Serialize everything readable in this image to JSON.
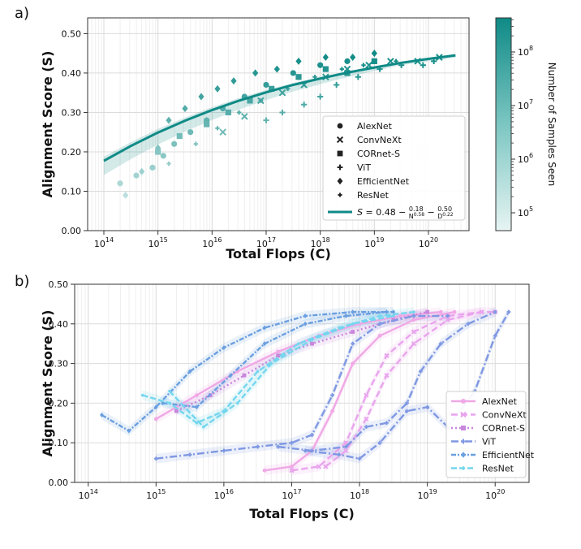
{
  "colors": {
    "teal": "#0f8a86",
    "teal_light": "#dff1f0",
    "alexnet": "#f0a8e6",
    "convnext": "#e9a4ee",
    "cornet": "#c886dc",
    "vit": "#7f98e2",
    "efficientnet": "#6a9fe0",
    "resnet": "#74d6ee"
  },
  "chart_data": [
    {
      "panel_label": "a)",
      "type": "scatter",
      "xlabel": "Total Flops (C)",
      "ylabel": "Alignment Score (S)",
      "xscale": "log",
      "xlim_exp": [
        13.7,
        20.75
      ],
      "ylim": [
        0,
        0.54
      ],
      "x_tick_labels": [
        {
          "base": "10",
          "exp": "14",
          "v": 14
        },
        {
          "base": "10",
          "exp": "15",
          "v": 15
        },
        {
          "base": "10",
          "exp": "16",
          "v": 16
        },
        {
          "base": "10",
          "exp": "17",
          "v": 17
        },
        {
          "base": "10",
          "exp": "18",
          "v": 18
        },
        {
          "base": "10",
          "exp": "19",
          "v": 19
        },
        {
          "base": "10",
          "exp": "20",
          "v": 20
        }
      ],
      "y_ticks": [
        "0.00",
        "0.10",
        "0.20",
        "0.30",
        "0.40",
        "0.50"
      ],
      "grid": true,
      "colorbar": {
        "label": "Number of Samples Seen",
        "tick_labels": [
          {
            "base": "10",
            "exp": "5"
          },
          {
            "base": "10",
            "exp": "6"
          },
          {
            "base": "10",
            "exp": "7"
          },
          {
            "base": "10",
            "exp": "8"
          }
        ]
      },
      "legend": {
        "position": "lower-right",
        "items": [
          {
            "label": "AlexNet",
            "marker": "circle"
          },
          {
            "label": "ConvNeXt",
            "marker": "x"
          },
          {
            "label": "CORnet-S",
            "marker": "square"
          },
          {
            "label": "ViT",
            "marker": "plus"
          },
          {
            "label": "EfficientNet",
            "marker": "diamond"
          },
          {
            "label": "ResNet",
            "marker": "small-plus"
          }
        ]
      },
      "fit": {
        "label_eq": "S = 0.48 − 0.18/N^0.58 − 0.50/D^0.22",
        "s_inf": 0.48,
        "x_log_range": [
          14,
          20.5
        ],
        "points": [
          [
            14,
            0.177
          ],
          [
            14.5,
            0.215
          ],
          [
            15,
            0.249
          ],
          [
            15.5,
            0.279
          ],
          [
            16,
            0.306
          ],
          [
            16.5,
            0.33
          ],
          [
            17,
            0.351
          ],
          [
            17.5,
            0.37
          ],
          [
            18,
            0.386
          ],
          [
            18.5,
            0.401
          ],
          [
            19,
            0.414
          ],
          [
            19.5,
            0.426
          ],
          [
            20,
            0.436
          ],
          [
            20.5,
            0.445
          ]
        ]
      },
      "points": [
        {
          "m": "circle",
          "x": 14.3,
          "y": 0.12
        },
        {
          "m": "circle",
          "x": 14.6,
          "y": 0.14
        },
        {
          "m": "circle",
          "x": 14.9,
          "y": 0.16
        },
        {
          "m": "circle",
          "x": 15.1,
          "y": 0.19
        },
        {
          "m": "circle",
          "x": 15.3,
          "y": 0.22
        },
        {
          "m": "circle",
          "x": 15.6,
          "y": 0.25
        },
        {
          "m": "circle",
          "x": 15.9,
          "y": 0.28
        },
        {
          "m": "circle",
          "x": 16.2,
          "y": 0.31
        },
        {
          "m": "circle",
          "x": 16.6,
          "y": 0.34
        },
        {
          "m": "circle",
          "x": 17.0,
          "y": 0.37
        },
        {
          "m": "circle",
          "x": 17.5,
          "y": 0.4
        },
        {
          "m": "circle",
          "x": 18.0,
          "y": 0.42
        },
        {
          "m": "circle",
          "x": 18.5,
          "y": 0.43
        },
        {
          "m": "diamond",
          "x": 14.4,
          "y": 0.09
        },
        {
          "m": "diamond",
          "x": 14.7,
          "y": 0.15
        },
        {
          "m": "diamond",
          "x": 15.0,
          "y": 0.21
        },
        {
          "m": "diamond",
          "x": 15.2,
          "y": 0.28
        },
        {
          "m": "diamond",
          "x": 15.5,
          "y": 0.31
        },
        {
          "m": "diamond",
          "x": 15.8,
          "y": 0.34
        },
        {
          "m": "diamond",
          "x": 16.1,
          "y": 0.36
        },
        {
          "m": "diamond",
          "x": 16.4,
          "y": 0.38
        },
        {
          "m": "diamond",
          "x": 16.8,
          "y": 0.4
        },
        {
          "m": "diamond",
          "x": 17.2,
          "y": 0.41
        },
        {
          "m": "diamond",
          "x": 17.6,
          "y": 0.43
        },
        {
          "m": "diamond",
          "x": 18.1,
          "y": 0.44
        },
        {
          "m": "diamond",
          "x": 18.6,
          "y": 0.44
        },
        {
          "m": "diamond",
          "x": 19.0,
          "y": 0.45
        },
        {
          "m": "square",
          "x": 15.0,
          "y": 0.2
        },
        {
          "m": "square",
          "x": 15.4,
          "y": 0.24
        },
        {
          "m": "square",
          "x": 15.9,
          "y": 0.27
        },
        {
          "m": "square",
          "x": 16.3,
          "y": 0.3
        },
        {
          "m": "square",
          "x": 16.7,
          "y": 0.33
        },
        {
          "m": "square",
          "x": 17.1,
          "y": 0.36
        },
        {
          "m": "square",
          "x": 17.6,
          "y": 0.39
        },
        {
          "m": "square",
          "x": 18.1,
          "y": 0.41
        },
        {
          "m": "square",
          "x": 18.5,
          "y": 0.4
        },
        {
          "m": "square",
          "x": 19.0,
          "y": 0.43
        },
        {
          "m": "x",
          "x": 16.2,
          "y": 0.25
        },
        {
          "m": "x",
          "x": 16.6,
          "y": 0.29
        },
        {
          "m": "x",
          "x": 16.9,
          "y": 0.33
        },
        {
          "m": "x",
          "x": 17.3,
          "y": 0.35
        },
        {
          "m": "x",
          "x": 17.7,
          "y": 0.37
        },
        {
          "m": "x",
          "x": 18.1,
          "y": 0.39
        },
        {
          "m": "x",
          "x": 18.5,
          "y": 0.41
        },
        {
          "m": "x",
          "x": 18.9,
          "y": 0.42
        },
        {
          "m": "x",
          "x": 19.3,
          "y": 0.43
        },
        {
          "m": "x",
          "x": 19.8,
          "y": 0.43
        },
        {
          "m": "x",
          "x": 20.2,
          "y": 0.44
        },
        {
          "m": "plus",
          "x": 17.0,
          "y": 0.28
        },
        {
          "m": "plus",
          "x": 17.3,
          "y": 0.3
        },
        {
          "m": "plus",
          "x": 17.7,
          "y": 0.32
        },
        {
          "m": "plus",
          "x": 18.0,
          "y": 0.34
        },
        {
          "m": "plus",
          "x": 18.3,
          "y": 0.37
        },
        {
          "m": "plus",
          "x": 18.7,
          "y": 0.39
        },
        {
          "m": "plus",
          "x": 19.1,
          "y": 0.41
        },
        {
          "m": "plus",
          "x": 19.5,
          "y": 0.42
        },
        {
          "m": "plus",
          "x": 19.9,
          "y": 0.42
        },
        {
          "m": "plus",
          "x": 20.1,
          "y": 0.43
        },
        {
          "m": "small-plus",
          "x": 15.2,
          "y": 0.17
        },
        {
          "m": "small-plus",
          "x": 15.7,
          "y": 0.22
        },
        {
          "m": "small-plus",
          "x": 16.1,
          "y": 0.26
        },
        {
          "m": "small-plus",
          "x": 16.5,
          "y": 0.3
        },
        {
          "m": "small-plus",
          "x": 16.9,
          "y": 0.33
        },
        {
          "m": "small-plus",
          "x": 17.4,
          "y": 0.36
        },
        {
          "m": "small-plus",
          "x": 17.9,
          "y": 0.39
        },
        {
          "m": "small-plus",
          "x": 18.4,
          "y": 0.41
        },
        {
          "m": "small-plus",
          "x": 18.8,
          "y": 0.42
        },
        {
          "m": "small-plus",
          "x": 19.4,
          "y": 0.43
        }
      ]
    },
    {
      "panel_label": "b)",
      "type": "line",
      "xlabel": "Total Flops (C)",
      "ylabel": "Alignment Score (S)",
      "xscale": "log",
      "xlim_exp": [
        13.8,
        20.5
      ],
      "ylim": [
        0,
        0.5
      ],
      "x_tick_labels": [
        {
          "base": "10",
          "exp": "14",
          "v": 14
        },
        {
          "base": "10",
          "exp": "15",
          "v": 15
        },
        {
          "base": "10",
          "exp": "16",
          "v": 16
        },
        {
          "base": "10",
          "exp": "17",
          "v": 17
        },
        {
          "base": "10",
          "exp": "18",
          "v": 18
        },
        {
          "base": "10",
          "exp": "19",
          "v": 19
        },
        {
          "base": "10",
          "exp": "20",
          "v": 20
        }
      ],
      "y_ticks": [
        "0.00",
        "0.10",
        "0.20",
        "0.30",
        "0.40",
        "0.50"
      ],
      "grid": true,
      "legend": {
        "position": "lower-right"
      },
      "series": [
        {
          "name": "AlexNet",
          "color": "#f0a8e6",
          "dash": "",
          "points": [
            [
              15.0,
              0.16
            ],
            [
              15.6,
              0.22
            ],
            [
              16.2,
              0.28
            ],
            [
              16.8,
              0.33
            ],
            [
              17.4,
              0.37
            ],
            [
              18.0,
              0.4
            ],
            [
              18.6,
              0.42
            ],
            [
              19.2,
              0.43
            ]
          ]
        },
        {
          "name": "AlexNet",
          "color": "#f0a8e6",
          "dash": "",
          "points": [
            [
              16.6,
              0.03
            ],
            [
              17.0,
              0.04
            ],
            [
              17.3,
              0.08
            ],
            [
              17.6,
              0.18
            ],
            [
              17.9,
              0.3
            ],
            [
              18.3,
              0.37
            ],
            [
              18.8,
              0.41
            ],
            [
              19.4,
              0.43
            ]
          ]
        },
        {
          "name": "ConvNeXt",
          "color": "#e9a4ee",
          "dash": "8,4",
          "points": [
            [
              17.0,
              0.03
            ],
            [
              17.4,
              0.04
            ],
            [
              17.8,
              0.1
            ],
            [
              18.1,
              0.22
            ],
            [
              18.4,
              0.32
            ],
            [
              18.8,
              0.38
            ],
            [
              19.3,
              0.42
            ],
            [
              19.8,
              0.43
            ],
            [
              20.0,
              0.43
            ]
          ]
        },
        {
          "name": "ConvNeXt",
          "color": "#e9a4ee",
          "dash": "8,4",
          "points": [
            [
              17.5,
              0.04
            ],
            [
              17.8,
              0.08
            ],
            [
              18.1,
              0.16
            ],
            [
              18.4,
              0.27
            ],
            [
              18.8,
              0.35
            ],
            [
              19.3,
              0.41
            ],
            [
              19.8,
              0.43
            ]
          ]
        },
        {
          "name": "CORnet-S",
          "color": "#c886dc",
          "dash": "2,3",
          "points": [
            [
              15.3,
              0.18
            ],
            [
              15.8,
              0.22
            ],
            [
              16.3,
              0.27
            ],
            [
              16.8,
              0.32
            ],
            [
              17.3,
              0.35
            ],
            [
              17.9,
              0.38
            ],
            [
              18.5,
              0.41
            ],
            [
              19.0,
              0.43
            ]
          ]
        },
        {
          "name": "ViT",
          "color": "#7f98e2",
          "dash": "9,3,2,3",
          "points": [
            [
              15.0,
              0.06
            ],
            [
              15.5,
              0.07
            ],
            [
              16.0,
              0.08
            ],
            [
              16.5,
              0.09
            ],
            [
              17.0,
              0.1
            ],
            [
              17.3,
              0.12
            ],
            [
              17.6,
              0.22
            ],
            [
              17.9,
              0.35
            ],
            [
              18.3,
              0.4
            ],
            [
              18.8,
              0.42
            ],
            [
              19.3,
              0.42
            ]
          ]
        },
        {
          "name": "ViT",
          "color": "#7f98e2",
          "dash": "9,3,2,3",
          "points": [
            [
              16.8,
              0.09
            ],
            [
              17.3,
              0.08
            ],
            [
              17.8,
              0.09
            ],
            [
              18.1,
              0.14
            ],
            [
              18.4,
              0.15
            ],
            [
              18.7,
              0.2
            ],
            [
              18.9,
              0.28
            ],
            [
              19.2,
              0.35
            ],
            [
              19.6,
              0.4
            ],
            [
              20.0,
              0.43
            ]
          ]
        },
        {
          "name": "ViT",
          "color": "#7f98e2",
          "dash": "9,3,2,3",
          "points": [
            [
              17.2,
              0.08
            ],
            [
              17.7,
              0.07
            ],
            [
              18.0,
              0.06
            ],
            [
              18.3,
              0.1
            ],
            [
              18.7,
              0.18
            ],
            [
              19.0,
              0.19
            ],
            [
              19.3,
              0.14
            ],
            [
              19.7,
              0.23
            ],
            [
              20.0,
              0.37
            ],
            [
              20.2,
              0.43
            ]
          ]
        },
        {
          "name": "EfficientNet",
          "color": "#6a9fe0",
          "dash": "6,2,2,2",
          "points": [
            [
              14.2,
              0.17
            ],
            [
              14.6,
              0.13
            ],
            [
              15.0,
              0.19
            ],
            [
              15.5,
              0.28
            ],
            [
              16.0,
              0.34
            ],
            [
              16.6,
              0.39
            ],
            [
              17.2,
              0.42
            ],
            [
              17.9,
              0.43
            ],
            [
              18.5,
              0.43
            ]
          ]
        },
        {
          "name": "EfficientNet",
          "color": "#6a9fe0",
          "dash": "6,2,2,2",
          "points": [
            [
              15.1,
              0.2
            ],
            [
              15.6,
              0.19
            ],
            [
              16.1,
              0.27
            ],
            [
              16.6,
              0.35
            ],
            [
              17.2,
              0.4
            ],
            [
              17.8,
              0.42
            ],
            [
              18.4,
              0.43
            ]
          ]
        },
        {
          "name": "ResNet",
          "color": "#74d6ee",
          "dash": "7,3",
          "points": [
            [
              14.8,
              0.22
            ],
            [
              15.2,
              0.2
            ],
            [
              15.6,
              0.15
            ],
            [
              16.0,
              0.18
            ],
            [
              16.5,
              0.28
            ],
            [
              17.1,
              0.35
            ],
            [
              17.7,
              0.39
            ],
            [
              18.3,
              0.42
            ],
            [
              18.8,
              0.43
            ]
          ]
        },
        {
          "name": "ResNet",
          "color": "#74d6ee",
          "dash": "7,3",
          "points": [
            [
              15.2,
              0.23
            ],
            [
              15.7,
              0.14
            ],
            [
              16.2,
              0.2
            ],
            [
              16.7,
              0.3
            ],
            [
              17.3,
              0.36
            ],
            [
              17.9,
              0.4
            ],
            [
              18.5,
              0.42
            ]
          ]
        }
      ],
      "legend_items": [
        {
          "label": "AlexNet",
          "color": "#f0a8e6",
          "dash": "",
          "marker": "circle"
        },
        {
          "label": "ConvNeXt",
          "color": "#e9a4ee",
          "dash": "8,4",
          "marker": "x"
        },
        {
          "label": "CORnet-S",
          "color": "#c886dc",
          "dash": "2,3",
          "marker": "square"
        },
        {
          "label": "ViT",
          "color": "#7f98e2",
          "dash": "9,3,2,3",
          "marker": "plus"
        },
        {
          "label": "EfficientNet",
          "color": "#6a9fe0",
          "dash": "6,2,2,2",
          "marker": "diamond"
        },
        {
          "label": "ResNet",
          "color": "#74d6ee",
          "dash": "7,3",
          "marker": "small-plus"
        }
      ]
    }
  ]
}
